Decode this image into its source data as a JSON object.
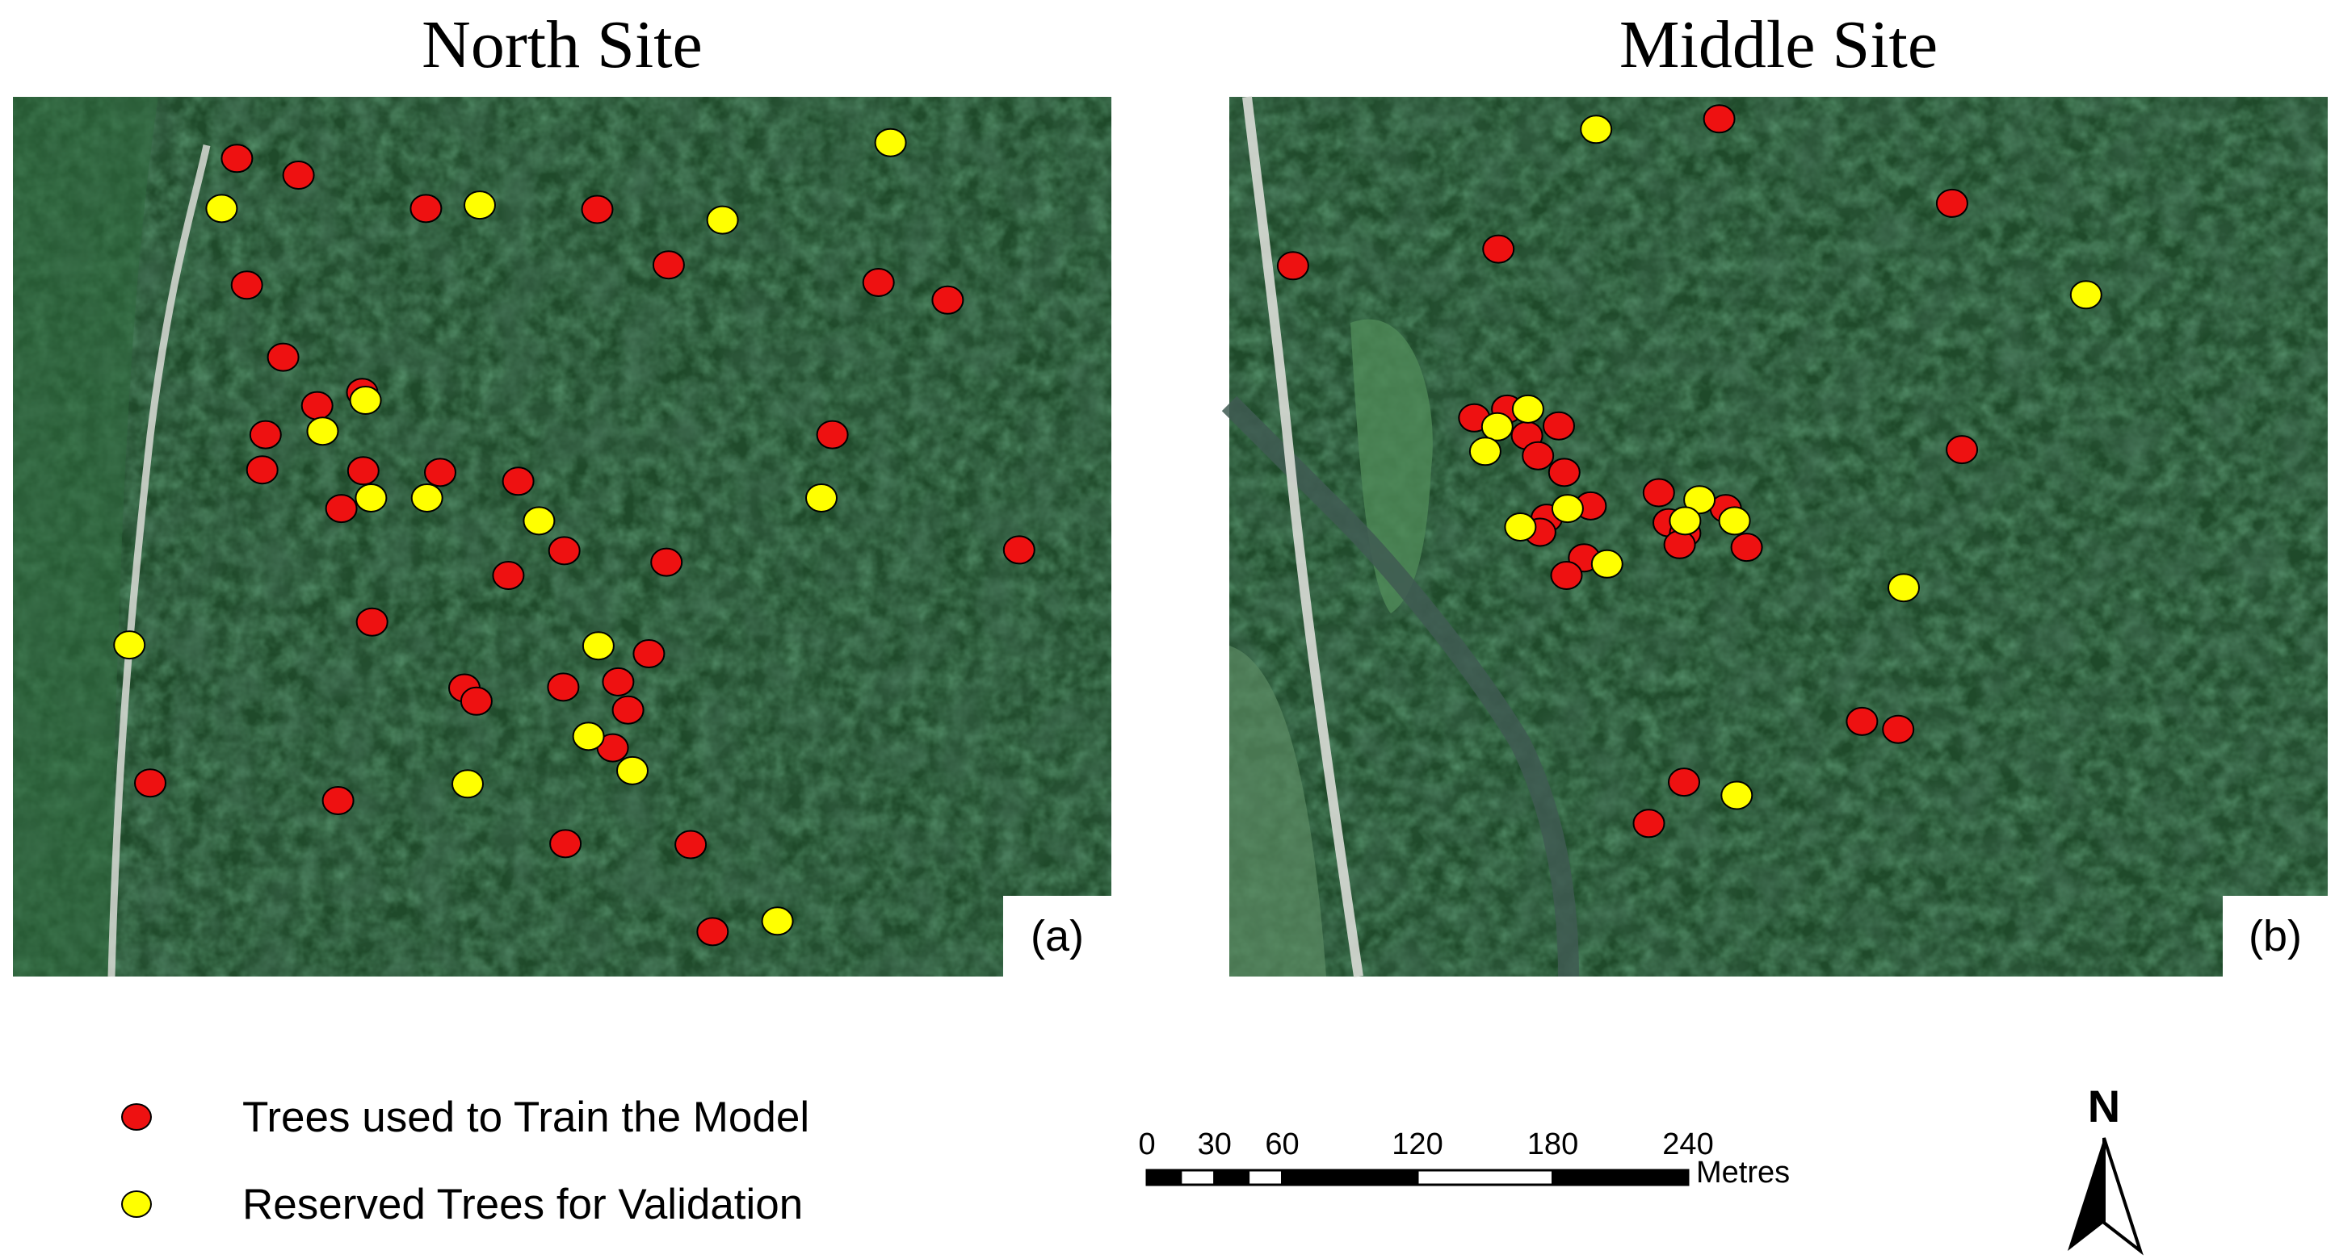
{
  "panels": [
    {
      "title": "North Site",
      "label": "(a)",
      "train_points": [
        [
          0.204,
          0.07
        ],
        [
          0.26,
          0.089
        ],
        [
          0.376,
          0.127
        ],
        [
          0.532,
          0.128
        ],
        [
          0.213,
          0.214
        ],
        [
          0.597,
          0.191
        ],
        [
          0.788,
          0.211
        ],
        [
          0.851,
          0.231
        ],
        [
          0.246,
          0.296
        ],
        [
          0.277,
          0.351
        ],
        [
          0.318,
          0.336
        ],
        [
          0.23,
          0.384
        ],
        [
          0.227,
          0.424
        ],
        [
          0.319,
          0.425
        ],
        [
          0.389,
          0.427
        ],
        [
          0.46,
          0.437
        ],
        [
          0.299,
          0.468
        ],
        [
          0.746,
          0.384
        ],
        [
          0.451,
          0.544
        ],
        [
          0.502,
          0.516
        ],
        [
          0.595,
          0.529
        ],
        [
          0.916,
          0.515
        ],
        [
          0.327,
          0.597
        ],
        [
          0.579,
          0.633
        ],
        [
          0.551,
          0.665
        ],
        [
          0.501,
          0.671
        ],
        [
          0.411,
          0.672
        ],
        [
          0.422,
          0.687
        ],
        [
          0.56,
          0.697
        ],
        [
          0.546,
          0.74
        ],
        [
          0.125,
          0.78
        ],
        [
          0.296,
          0.8
        ],
        [
          0.503,
          0.849
        ],
        [
          0.617,
          0.85
        ],
        [
          0.637,
          0.949
        ]
      ],
      "validation_points": [
        [
          0.799,
          0.052
        ],
        [
          0.19,
          0.127
        ],
        [
          0.425,
          0.123
        ],
        [
          0.646,
          0.14
        ],
        [
          0.321,
          0.345
        ],
        [
          0.282,
          0.38
        ],
        [
          0.326,
          0.456
        ],
        [
          0.377,
          0.456
        ],
        [
          0.479,
          0.482
        ],
        [
          0.736,
          0.456
        ],
        [
          0.106,
          0.623
        ],
        [
          0.533,
          0.624
        ],
        [
          0.524,
          0.727
        ],
        [
          0.564,
          0.766
        ],
        [
          0.414,
          0.781
        ],
        [
          0.696,
          0.937
        ]
      ]
    },
    {
      "title": "Middle Site",
      "label": "(b)",
      "train_points": [
        [
          0.446,
          0.025
        ],
        [
          0.658,
          0.121
        ],
        [
          0.058,
          0.192
        ],
        [
          0.245,
          0.173
        ],
        [
          0.667,
          0.401
        ],
        [
          0.223,
          0.365
        ],
        [
          0.253,
          0.355
        ],
        [
          0.271,
          0.385
        ],
        [
          0.3,
          0.374
        ],
        [
          0.281,
          0.408
        ],
        [
          0.305,
          0.427
        ],
        [
          0.289,
          0.479
        ],
        [
          0.329,
          0.465
        ],
        [
          0.283,
          0.495
        ],
        [
          0.391,
          0.45
        ],
        [
          0.4,
          0.484
        ],
        [
          0.415,
          0.496
        ],
        [
          0.452,
          0.468
        ],
        [
          0.41,
          0.509
        ],
        [
          0.471,
          0.512
        ],
        [
          0.323,
          0.524
        ],
        [
          0.307,
          0.544
        ],
        [
          0.576,
          0.71
        ],
        [
          0.609,
          0.719
        ],
        [
          0.414,
          0.779
        ],
        [
          0.382,
          0.826
        ]
      ],
      "validation_points": [
        [
          0.334,
          0.037
        ],
        [
          0.78,
          0.225
        ],
        [
          0.272,
          0.355
        ],
        [
          0.244,
          0.375
        ],
        [
          0.233,
          0.403
        ],
        [
          0.428,
          0.458
        ],
        [
          0.308,
          0.468
        ],
        [
          0.265,
          0.489
        ],
        [
          0.415,
          0.482
        ],
        [
          0.46,
          0.482
        ],
        [
          0.344,
          0.531
        ],
        [
          0.614,
          0.558
        ],
        [
          0.462,
          0.794
        ]
      ]
    }
  ],
  "legend": {
    "train_label": "Trees used to Train the Model",
    "validation_label": "Reserved Trees for Validation"
  },
  "scale_bar": {
    "ticks": [
      "0",
      "30",
      "60",
      "120",
      "180",
      "240"
    ],
    "tick_values": [
      0,
      30,
      60,
      120,
      180,
      240
    ],
    "max": 240,
    "unit": "Metres"
  },
  "north_label": "N",
  "colors": {
    "train": "#ee1111",
    "validation": "#ffff00",
    "forest": "#1f4a2a",
    "road": "#d9dcd6",
    "river": "#3f5a52"
  }
}
